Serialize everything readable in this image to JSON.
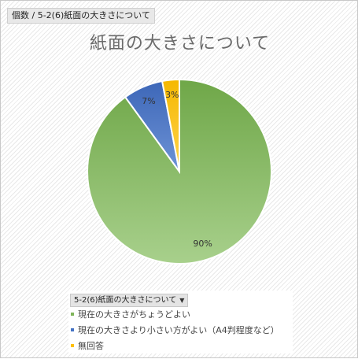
{
  "field_button": "個数 / 5-2(6)紙面の大きさについて",
  "legend_field": "5-2(6)紙面の大きさについて",
  "legend_arrow": "▼",
  "chart_data": {
    "type": "pie",
    "title": "紙面の大きさについて",
    "slices": [
      {
        "name": "現在の大きさがちょうどよい",
        "value": 90,
        "label": "90%",
        "color": "#80b55a",
        "color_top": "#6fa748",
        "color_bottom": "#a8d08c"
      },
      {
        "name": "現在の大きさより小さい方がよい（A4判程度など）",
        "value": 7,
        "label": "7%",
        "color": "#4472c4",
        "color_top": "#3d67b8",
        "color_bottom": "#6e93d6"
      },
      {
        "name": "無回答",
        "value": 3,
        "label": "3%",
        "color": "#ffc000",
        "color_top": "#f5b800",
        "color_bottom": "#ffd34d"
      }
    ]
  }
}
